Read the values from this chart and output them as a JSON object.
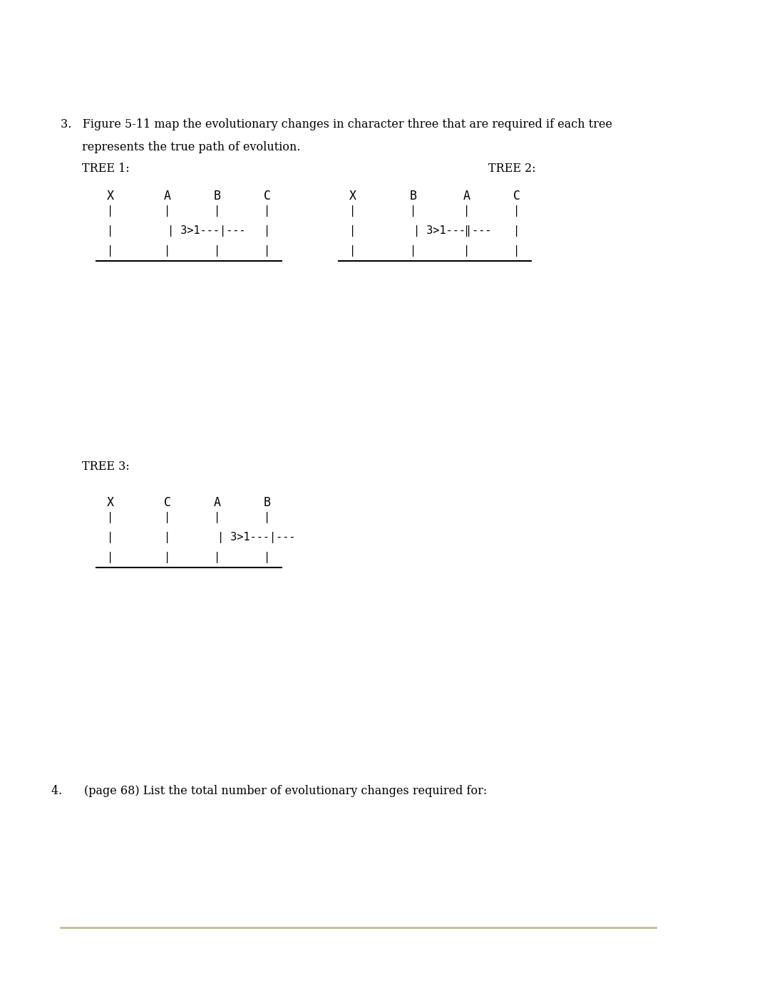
{
  "bg_color": "#ffffff",
  "page_width": 10.62,
  "page_height": 13.76,
  "q3_line1": "3.   Figure 5-11 map the evolutionary changes in character three that are required if each tree",
  "q3_line2": "     represents the true path of evolution.",
  "q3_line3": "     TREE 1:",
  "tree1_label": "TREE 1:",
  "tree2_label": "TREE 2:",
  "tree3_label": "TREE 3:",
  "q4_text": "4.      (page 68) List the total number of evolutionary changes required for:",
  "tree1_taxa": [
    "X",
    "A",
    "B",
    "C"
  ],
  "tree2_taxa": [
    "X",
    "B",
    "A",
    "C"
  ],
  "tree3_taxa": [
    "X",
    "C",
    "A",
    "B"
  ],
  "footer_color": "#c8b89a"
}
